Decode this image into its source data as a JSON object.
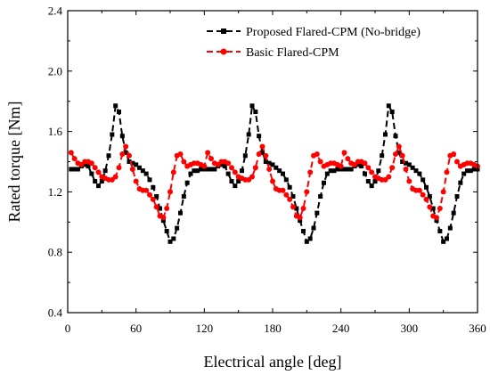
{
  "chart_data": {
    "type": "line",
    "title": "",
    "xlabel": "Electrical angle [deg]",
    "ylabel": "Rated torque [Nm]",
    "xlim": [
      0,
      360
    ],
    "ylim": [
      0.4,
      2.4
    ],
    "xticks": [
      "0",
      "60",
      "120",
      "180",
      "240",
      "300",
      "360"
    ],
    "yticks": [
      "0.4",
      "0.8",
      "1.2",
      "1.6",
      "2.0",
      "2.4"
    ],
    "grid": false,
    "legend_position": "top-right",
    "x": [
      3,
      6,
      9,
      12,
      15,
      18,
      21,
      24,
      27,
      30,
      33,
      36,
      39,
      42,
      45,
      48,
      51,
      54,
      57,
      60,
      63,
      66,
      69,
      72,
      75,
      78,
      81,
      84,
      87,
      90,
      93,
      96,
      99,
      102,
      105,
      108,
      111,
      114,
      117,
      120
    ],
    "series": [
      {
        "name": "Proposed Flared-CPM (No-bridge)",
        "color": "#000000",
        "marker": "square",
        "line_style": "dashed",
        "values": [
          1.35,
          1.35,
          1.35,
          1.37,
          1.38,
          1.37,
          1.32,
          1.27,
          1.24,
          1.27,
          1.34,
          1.44,
          1.58,
          1.77,
          1.73,
          1.57,
          1.46,
          1.4,
          1.39,
          1.38,
          1.36,
          1.34,
          1.32,
          1.28,
          1.23,
          1.17,
          1.09,
          1.01,
          0.94,
          0.87,
          0.89,
          0.96,
          1.06,
          1.17,
          1.26,
          1.32,
          1.34,
          1.34,
          1.35,
          1.35
        ]
      },
      {
        "name": "Basic Flared-CPM",
        "color": "#ff0000",
        "marker": "circle",
        "line_style": "dashed",
        "values": [
          1.46,
          1.42,
          1.39,
          1.38,
          1.4,
          1.4,
          1.39,
          1.36,
          1.33,
          1.3,
          1.29,
          1.28,
          1.28,
          1.3,
          1.36,
          1.45,
          1.5,
          1.44,
          1.35,
          1.27,
          1.22,
          1.21,
          1.21,
          1.18,
          1.15,
          1.1,
          1.04,
          1.03,
          1.09,
          1.2,
          1.33,
          1.44,
          1.45,
          1.4,
          1.37,
          1.38,
          1.39,
          1.39,
          1.38,
          1.37
        ]
      }
    ],
    "period_deg": 120
  }
}
